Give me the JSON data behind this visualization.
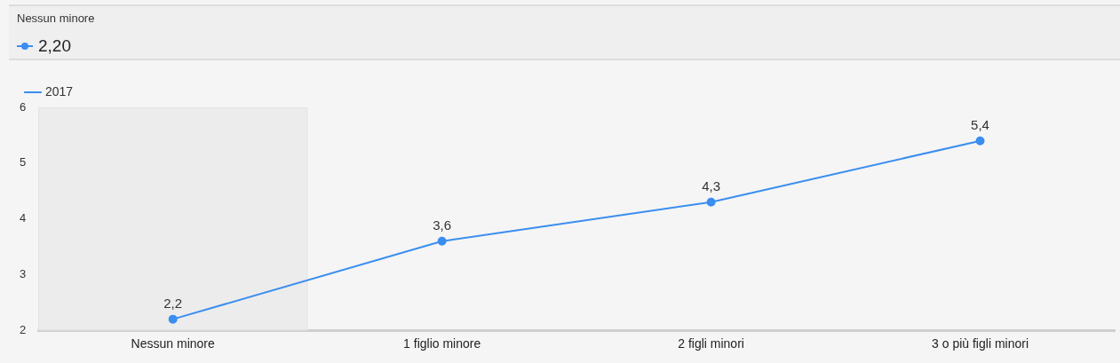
{
  "chart_data": {
    "type": "line",
    "categories": [
      "Nessun minore",
      "1 figlio minore",
      "2 figli minori",
      "3 o più figli minori"
    ],
    "series": [
      {
        "name": "2017",
        "color": "#3a8ef0",
        "values": [
          2.2,
          3.6,
          4.3,
          5.4
        ],
        "value_labels": [
          "2,2",
          "3,6",
          "4,3",
          "5,4"
        ]
      }
    ],
    "ylim": [
      2,
      6
    ],
    "yticks": [
      2,
      3,
      4,
      5,
      6
    ],
    "annotations": [
      "Nessun minore",
      "2,20"
    ],
    "bands": [
      {
        "axis": "x",
        "from": "Nessun minore",
        "to": "Nessun minore",
        "color": "#ececec"
      }
    ],
    "legend": "top left",
    "marker": "circle",
    "grid": false
  }
}
